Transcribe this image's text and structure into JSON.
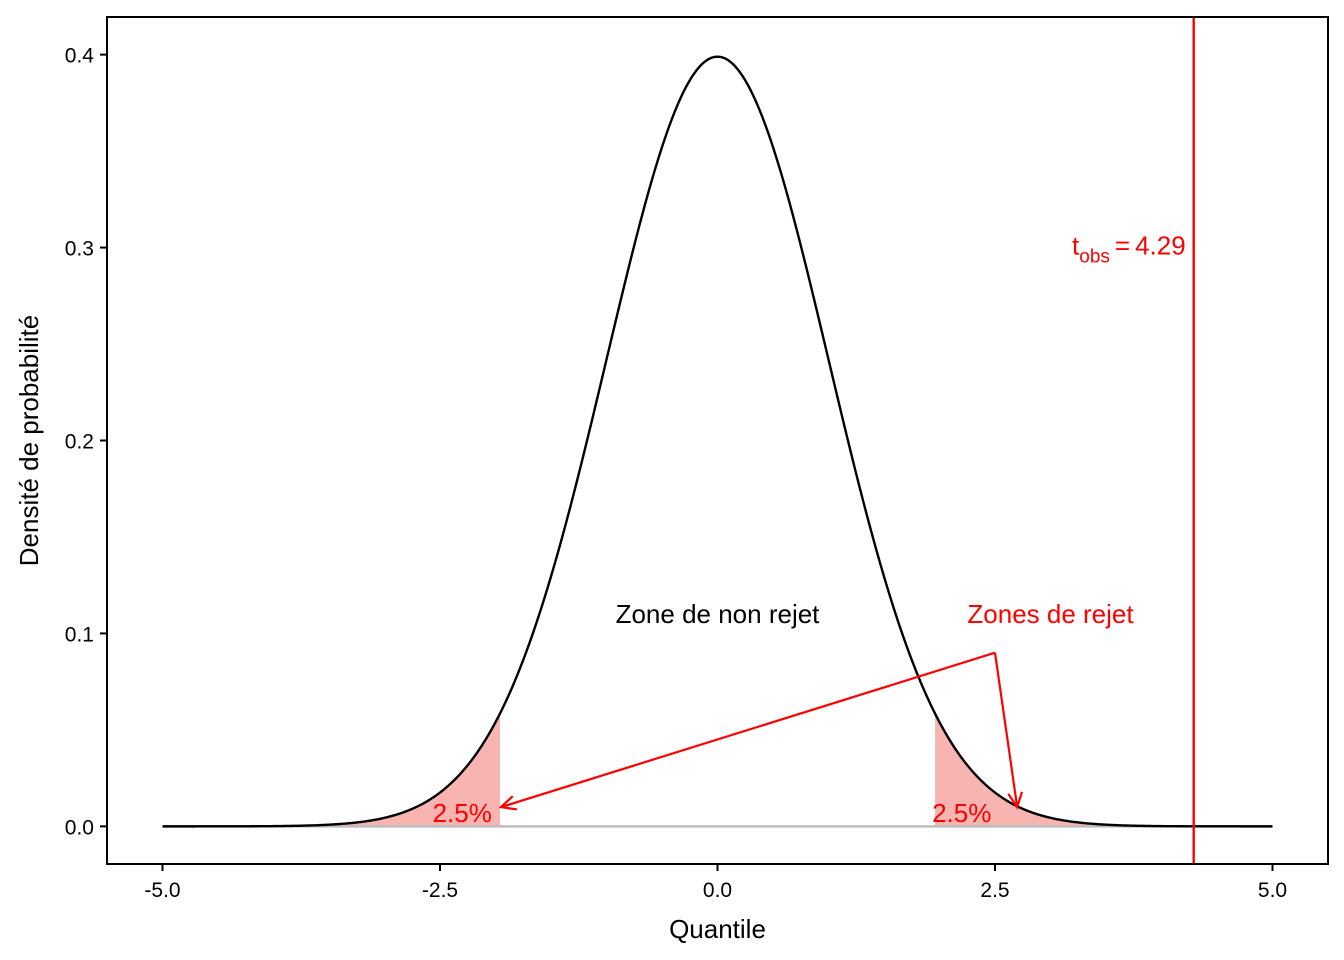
{
  "chart_data": {
    "type": "area",
    "distribution": "standard normal density",
    "xlabel": "Quantile",
    "ylabel": "Densité de probabilité",
    "xlim": [
      -5.5,
      5.5
    ],
    "ylim": [
      -0.0195,
      0.4195
    ],
    "x_ticks": [
      -5.0,
      -2.5,
      0.0,
      2.5,
      5.0
    ],
    "x_tick_labels": [
      "-5.0",
      "-2.5",
      "0.0",
      "2.5",
      "5.0"
    ],
    "y_ticks": [
      0.0,
      0.1,
      0.2,
      0.3,
      0.4
    ],
    "y_tick_labels": [
      "0.0",
      "0.1",
      "0.2",
      "0.3",
      "0.4"
    ],
    "curve_range": [
      -5,
      5
    ],
    "grid": false,
    "rejection_regions": [
      {
        "from": -5,
        "to": -1.96,
        "label": "2.5%"
      },
      {
        "from": 1.96,
        "to": 5,
        "label": "2.5%"
      }
    ],
    "observed_line": {
      "x": 4.29
    },
    "annotations": {
      "non_rejection": {
        "text": "Zone de non rejet",
        "x": -0.0,
        "y": 0.11
      },
      "rejection": {
        "text": "Zones de rejet",
        "x": 3.0,
        "y": 0.11
      },
      "arrow_origin": {
        "x": 2.5,
        "y": 0.09
      },
      "arrow_targets": [
        {
          "x": -1.95,
          "y": 0.01
        },
        {
          "x": 2.7,
          "y": 0.01
        }
      ],
      "left_pct_pos": {
        "x": -2.3,
        "y": 0.007
      },
      "right_pct_pos": {
        "x": 2.2,
        "y": 0.007
      },
      "t_obs": {
        "symbol": "t",
        "subscript": "obs",
        "equals": "=",
        "value": "4.29",
        "x": 4.29,
        "y": 0.3
      }
    },
    "colors": {
      "curve": "#000000",
      "fill": "#F8B4B0",
      "red": "#FF0000",
      "baseline": "#BEBEBE",
      "axis": "#000000"
    }
  }
}
